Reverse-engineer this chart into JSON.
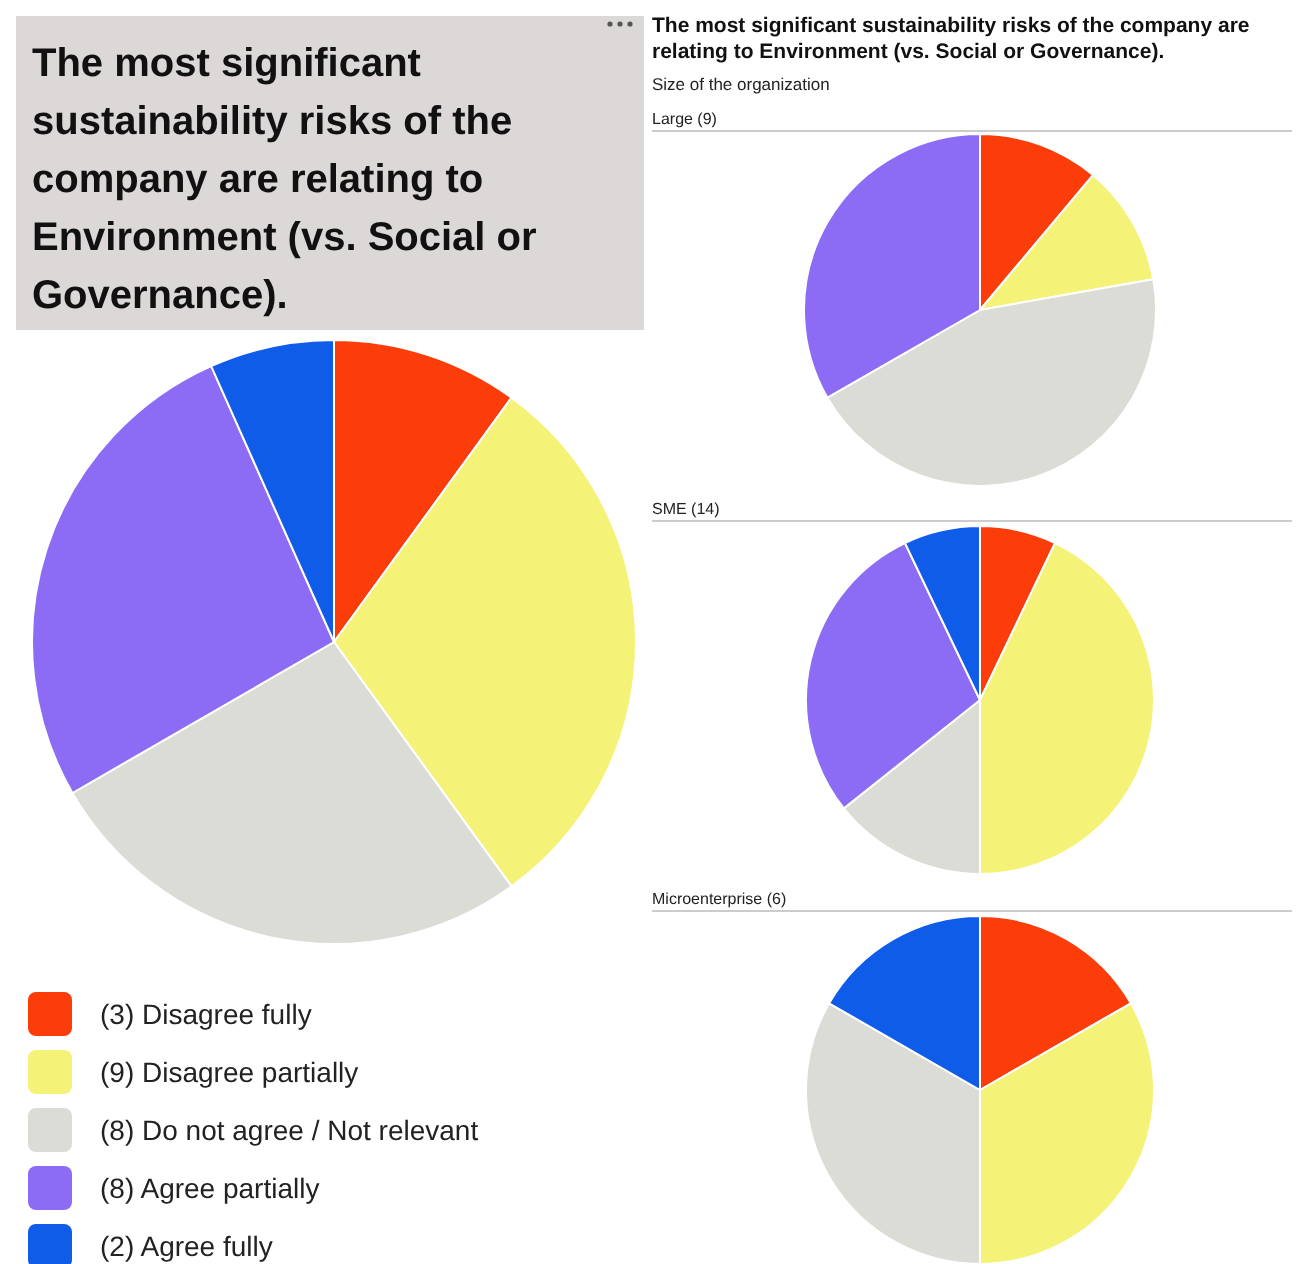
{
  "chart_data": [
    {
      "type": "pie",
      "title": "The most significant sustainability risks of the company are relating to Environment (vs. Social or Governance).",
      "categories": [
        "(3) Disagree fully",
        "(9) Disagree partially",
        "(8) Do not agree / Not relevant",
        "(8) Agree partially",
        "(2) Agree fully"
      ],
      "values": [
        3,
        9,
        8,
        8,
        2
      ],
      "colors": [
        "#fc3d0a",
        "#f4f277",
        "#dcdcd6",
        "#8c6cf4",
        "#0f5ce8"
      ],
      "legend": "bottom"
    },
    {
      "type": "pie",
      "title": "The most significant sustainability risks of the company are relating to Environment (vs. Social or Governance).",
      "subtitle": "Size of the organization",
      "annotations": [
        "Large (9)"
      ],
      "categories": [
        null,
        null,
        null,
        null,
        null
      ],
      "values": [
        11.1,
        11.1,
        44.5,
        33.3,
        0
      ],
      "colors": [
        "#fc3d0a",
        "#f4f277",
        "#dcdcd6",
        "#8c6cf4",
        "#0f5ce8"
      ]
    },
    {
      "type": "pie",
      "title": "SME (14)",
      "categories": [
        null,
        null,
        null,
        null,
        null
      ],
      "values": [
        7.1,
        42.9,
        14.3,
        28.6,
        7.1
      ],
      "colors": [
        "#fc3d0a",
        "#f4f277",
        "#dcdcd6",
        "#8c6cf4",
        "#0f5ce8"
      ]
    },
    {
      "type": "pie",
      "title": "Microenterprise (6)",
      "categories": [
        null,
        null,
        null,
        null,
        null
      ],
      "values": [
        16.7,
        33.3,
        33.3,
        0,
        16.7
      ],
      "colors": [
        "#fc3d0a",
        "#f4f277",
        "#dcdcd6",
        "#8c6cf4",
        "#0f5ce8"
      ]
    }
  ]
}
